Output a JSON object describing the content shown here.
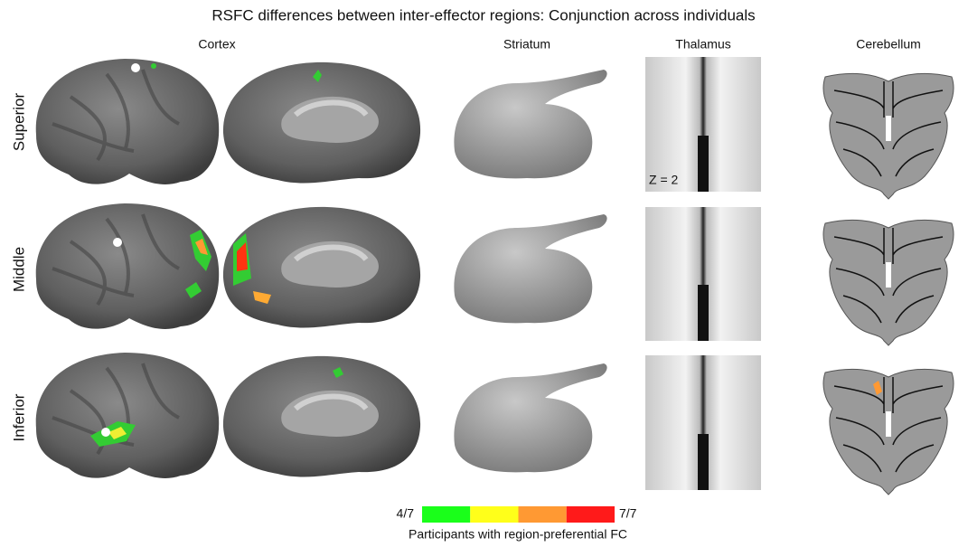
{
  "header": {
    "title": "RSFC differences between inter-effector regions: Conjunction across individuals"
  },
  "columns": [
    "Cortex",
    "Striatum",
    "Thalamus",
    "Cerebellum"
  ],
  "rows": [
    "Superior",
    "Middle",
    "Inferior"
  ],
  "annotation": "Z = 2",
  "colorbar": {
    "min_label": "4/7",
    "max_label": "7/7",
    "colors": [
      "#1aff1a",
      "#ffff1a",
      "#ff9933",
      "#ff1a1a"
    ],
    "caption": "Participants with region-preferential FC"
  }
}
